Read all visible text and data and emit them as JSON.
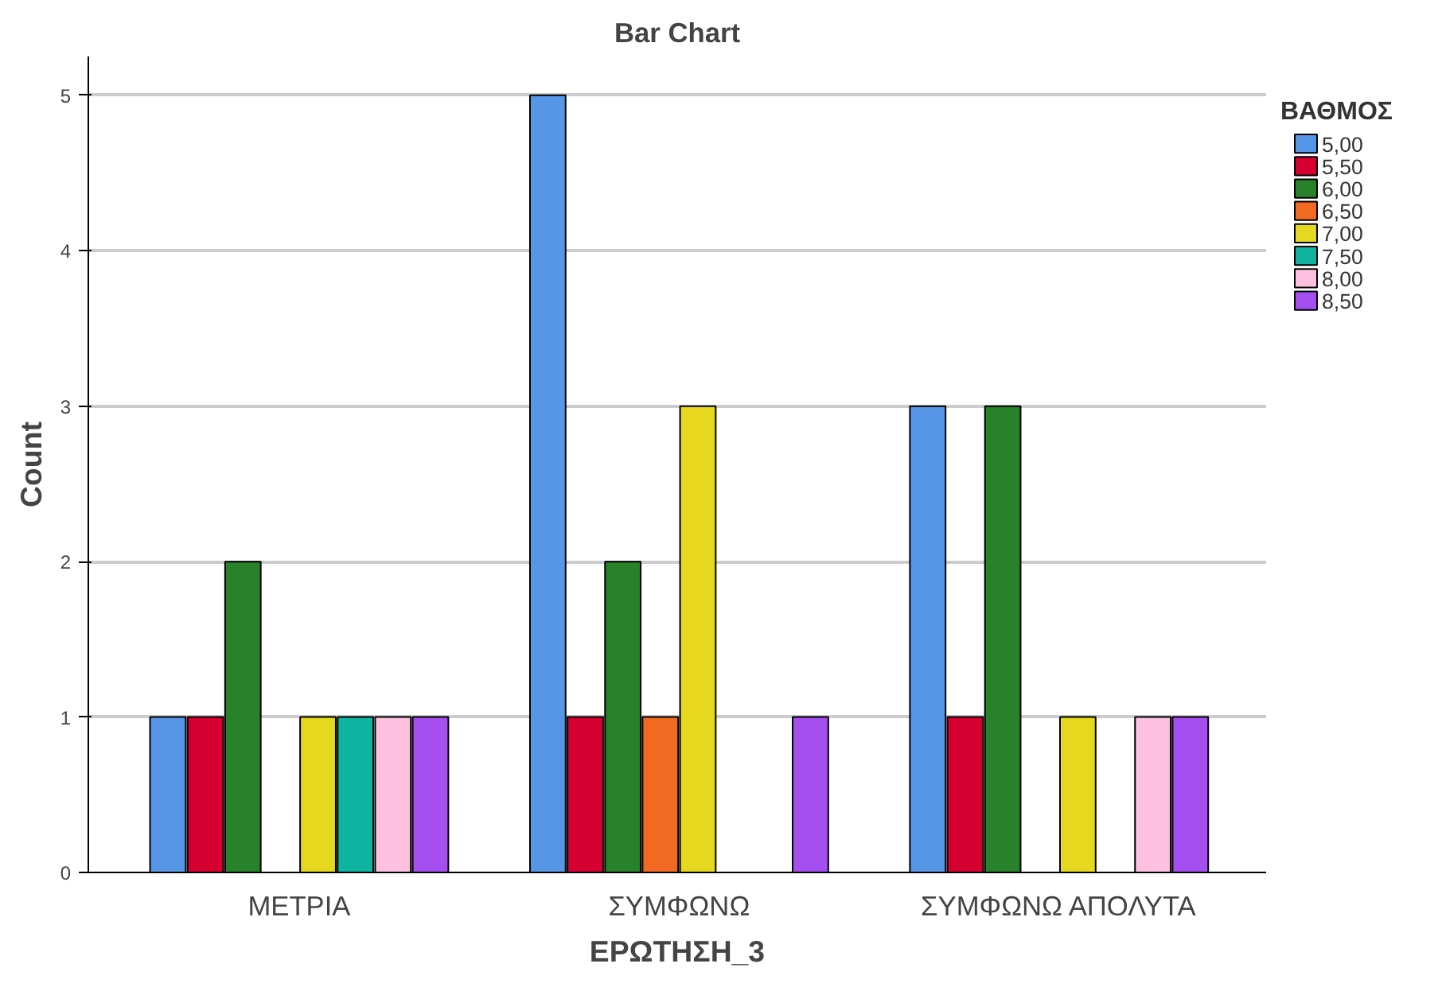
{
  "chart_data": {
    "type": "bar",
    "title": "Bar Chart",
    "xlabel": "ΕΡΩΤΗΣΗ_3",
    "ylabel": "Count",
    "legend_title": "ΒΑΘΜΟΣ",
    "categories": [
      "ΜΕΤΡΙΑ",
      "ΣΥΜΦΩΝΩ",
      "ΣΥΜΦΩΝΩ ΑΠΟΛΥΤΑ"
    ],
    "series": [
      {
        "name": "5,00",
        "color": "#5596e6",
        "values": [
          1,
          5,
          3
        ]
      },
      {
        "name": "5,50",
        "color": "#d5002f",
        "values": [
          1,
          1,
          1
        ]
      },
      {
        "name": "6,00",
        "color": "#27822a",
        "values": [
          2,
          2,
          3
        ]
      },
      {
        "name": "6,50",
        "color": "#f26a21",
        "values": [
          null,
          1,
          null
        ]
      },
      {
        "name": "7,00",
        "color": "#e6d81e",
        "values": [
          1,
          3,
          1
        ]
      },
      {
        "name": "7,50",
        "color": "#10b3a0",
        "values": [
          1,
          null,
          null
        ]
      },
      {
        "name": "8,00",
        "color": "#fdc1df",
        "values": [
          1,
          null,
          1
        ]
      },
      {
        "name": "8,50",
        "color": "#a64ff0",
        "values": [
          1,
          1,
          1
        ]
      }
    ],
    "ylim": [
      0,
      5.25
    ],
    "yticks": [
      0,
      1,
      2,
      3,
      4,
      5
    ],
    "grid": "y",
    "legend": "right"
  }
}
